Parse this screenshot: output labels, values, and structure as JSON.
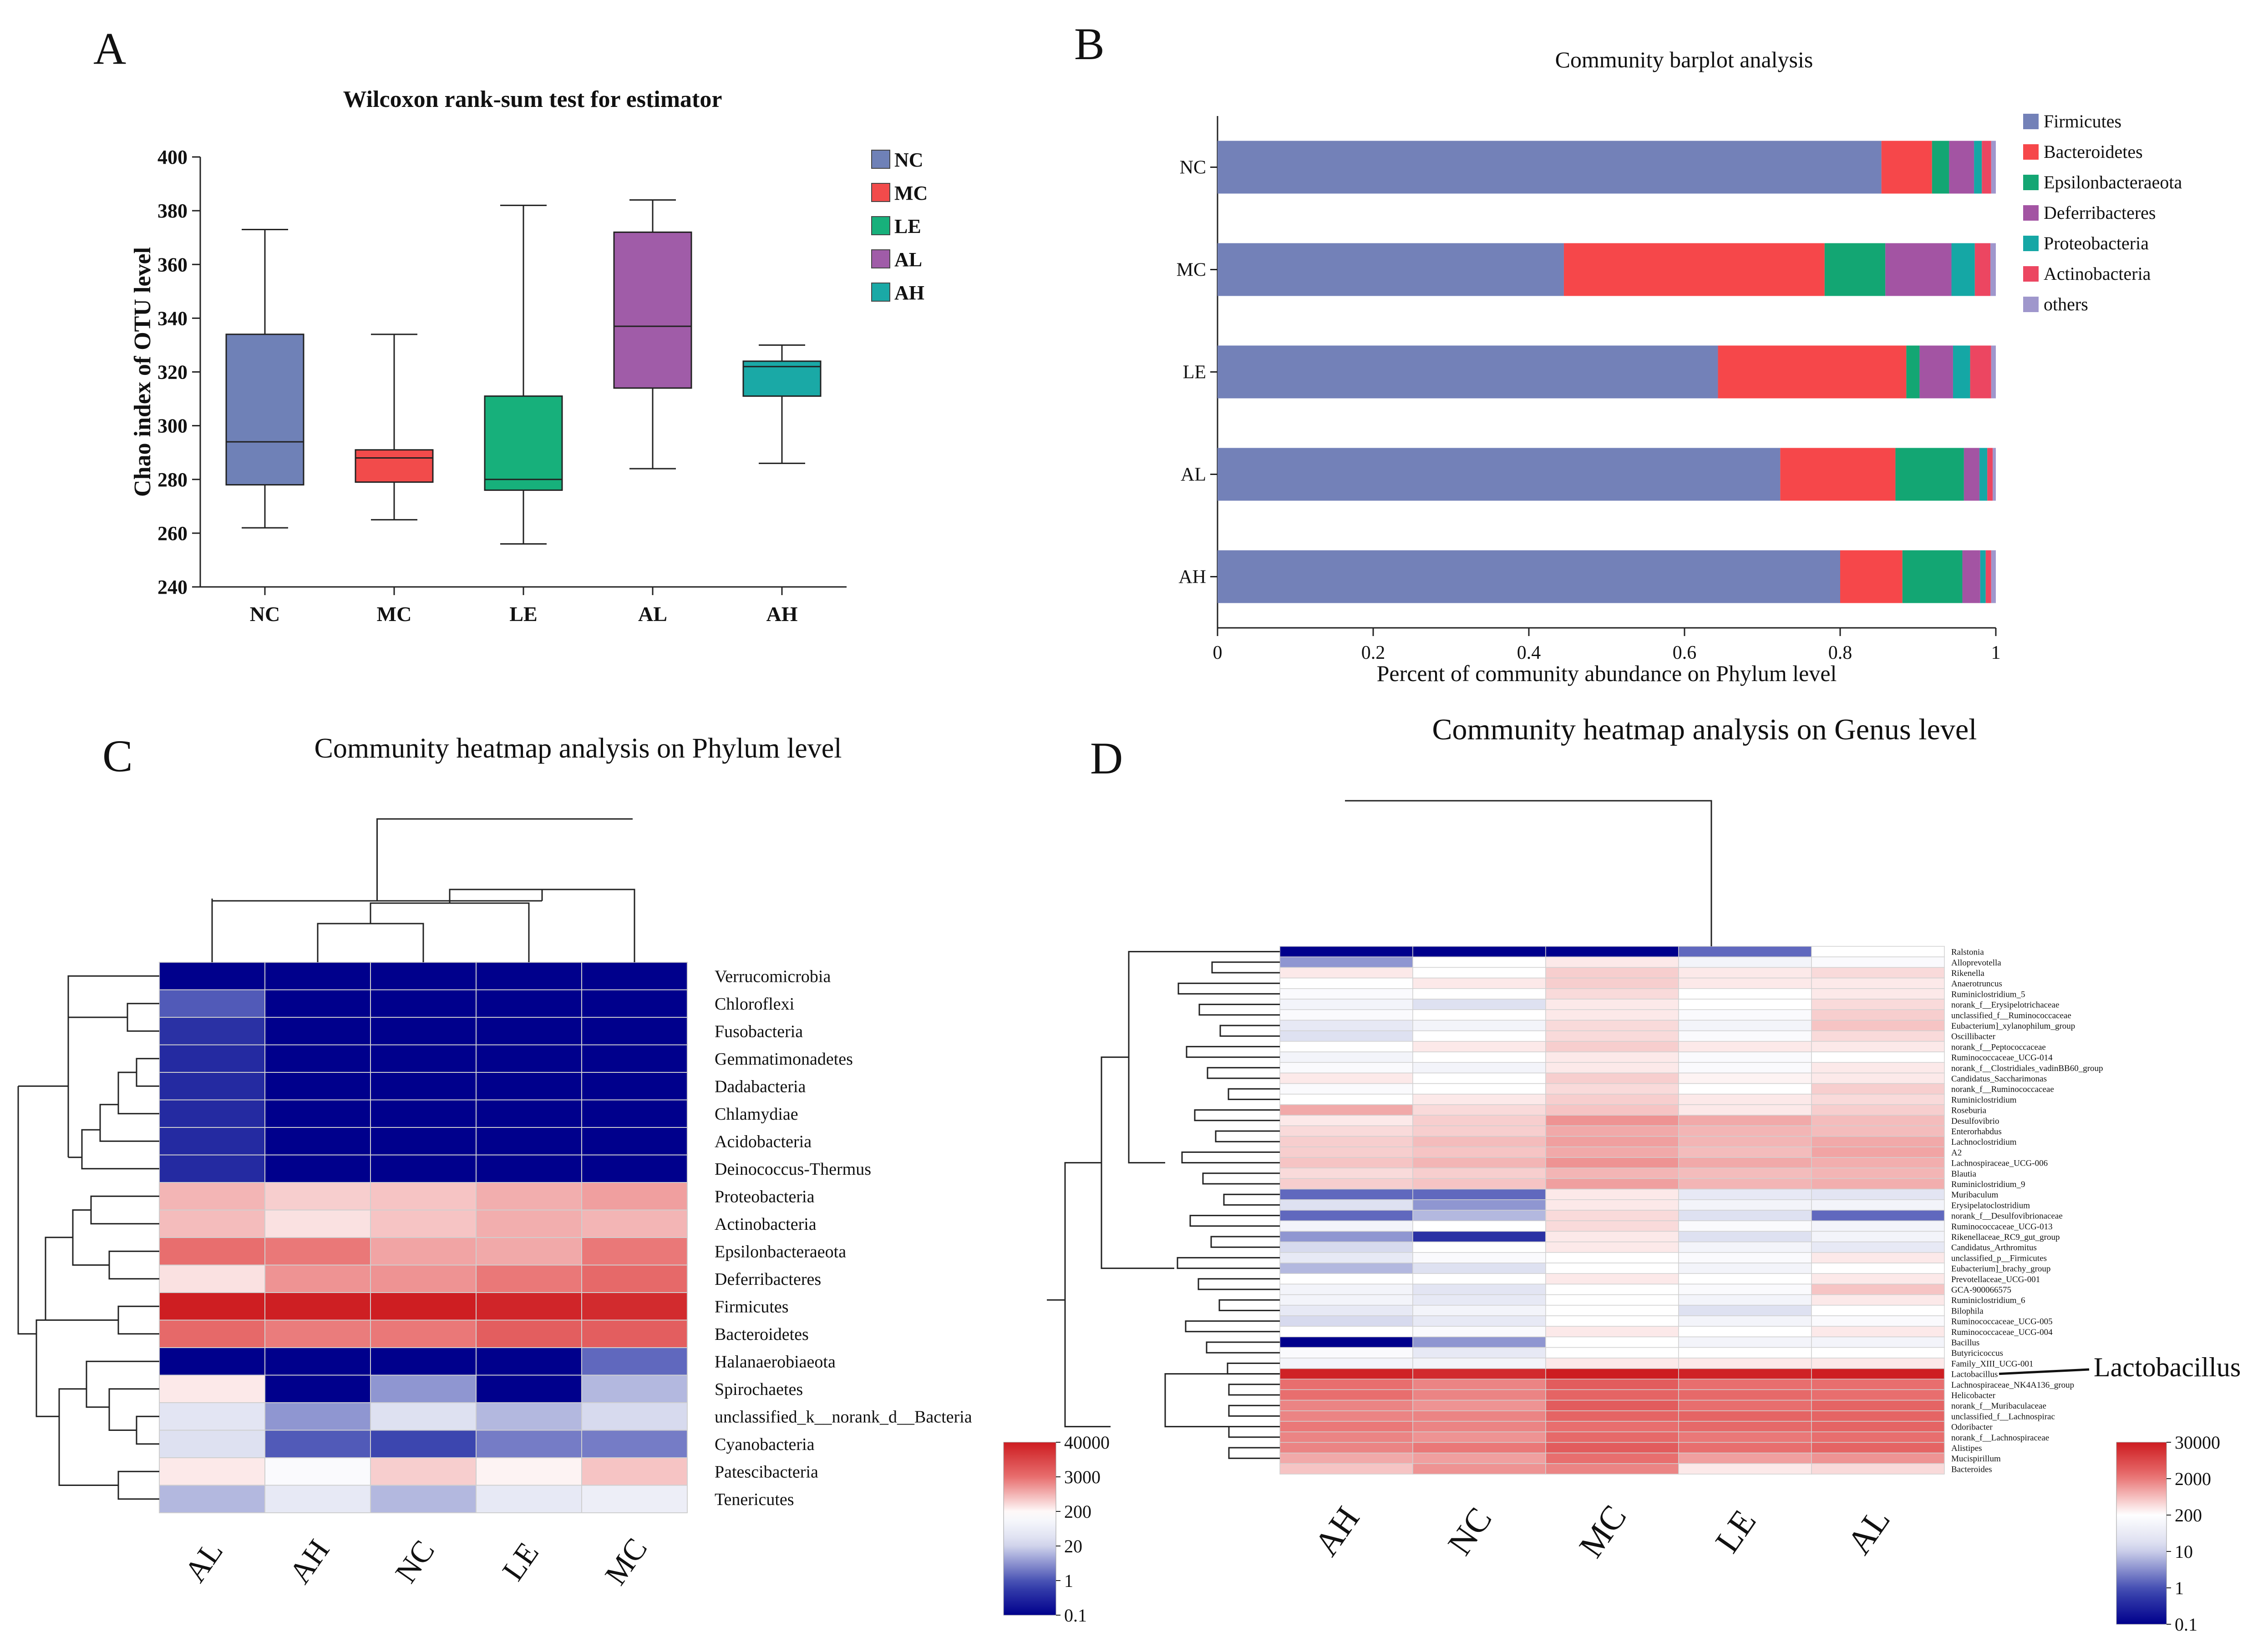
{
  "chart_data": [
    {
      "panel": "A",
      "type": "box",
      "title": "Wilcoxon rank-sum test for estimator",
      "ylabel": "Chao index of OTU level",
      "ylim": [
        240,
        400
      ],
      "yticks": [
        "240",
        "260",
        "280",
        "300",
        "320",
        "340",
        "360",
        "380",
        "400"
      ],
      "groups": [
        {
          "name": "NC",
          "color": "#6F81B7",
          "min": 262,
          "q1": 278,
          "median": 294,
          "q3": 334,
          "max": 373
        },
        {
          "name": "MC",
          "color": "#F24B4B",
          "min": 265,
          "q1": 279,
          "median": 288,
          "q3": 291,
          "max": 334
        },
        {
          "name": "LE",
          "color": "#17B07B",
          "min": 256,
          "q1": 276,
          "median": 280,
          "q3": 311,
          "max": 382
        },
        {
          "name": "AL",
          "color": "#A05CA8",
          "min": 284,
          "q1": 314,
          "median": 337,
          "q3": 372,
          "max": 384
        },
        {
          "name": "AH",
          "color": "#1AA9A6",
          "min": 286,
          "q1": 311,
          "median": 322,
          "q3": 324,
          "max": 330
        }
      ]
    },
    {
      "panel": "B",
      "type": "bar",
      "stacked": true,
      "orientation": "horizontal",
      "title": "Community barplot analysis",
      "xlabel": "Percent of community abundance on Phylum level",
      "xticks": [
        "0",
        "0.2",
        "0.4",
        "0.6",
        "0.8",
        "1"
      ],
      "xlim": [
        0,
        1
      ],
      "categories": [
        "NC",
        "MC",
        "LE",
        "AL",
        "AH"
      ],
      "series": [
        {
          "name": "Firmicutes",
          "color": "#7381B8",
          "values": [
            0.853,
            0.445,
            0.643,
            0.723,
            0.8
          ]
        },
        {
          "name": "Bacteroidetes",
          "color": "#F6474A",
          "values": [
            0.065,
            0.335,
            0.242,
            0.148,
            0.08
          ]
        },
        {
          "name": "Epsilonbacteraeota",
          "color": "#13A673",
          "values": [
            0.022,
            0.078,
            0.017,
            0.088,
            0.077
          ]
        },
        {
          "name": "Deferribacteres",
          "color": "#A354A3",
          "values": [
            0.032,
            0.085,
            0.043,
            0.02,
            0.023
          ]
        },
        {
          "name": "Proteobacteria",
          "color": "#15A7A5",
          "values": [
            0.01,
            0.03,
            0.022,
            0.01,
            0.007
          ]
        },
        {
          "name": "Actinobacteria",
          "color": "#EC4661",
          "values": [
            0.012,
            0.02,
            0.027,
            0.007,
            0.007
          ]
        },
        {
          "name": "others",
          "color": "#9F97CC",
          "values": [
            0.006,
            0.007,
            0.006,
            0.004,
            0.006
          ]
        }
      ]
    },
    {
      "panel": "C",
      "type": "heatmap",
      "title": "Community heatmap analysis on Phylum level",
      "columns": [
        "AL",
        "AH",
        "NC",
        "LE",
        "MC"
      ],
      "rows": [
        "Verrucomicrobia",
        "Chloroflexi",
        "Fusobacteria",
        "Gemmatimonadetes",
        "Dadabacteria",
        "Chlamydiae",
        "Acidobacteria",
        "Deinococcus-Thermus",
        "Proteobacteria",
        "Actinobacteria",
        "Epsilonbacteraeota",
        "Deferribacteres",
        "Firmicutes",
        "Bacteroidetes",
        "Halanaerobiaeota",
        "Spirochaetes",
        "unclassified_k__norank_d__Bacteria",
        "Cyanobacteria",
        "Patescibacteria",
        "Tenericutes"
      ],
      "values": [
        [
          0.1,
          0.1,
          0.1,
          0.1,
          0.1
        ],
        [
          1.5,
          0.1,
          0.1,
          0.1,
          0.1
        ],
        [
          0.5,
          0.1,
          0.1,
          0.1,
          0.1
        ],
        [
          0.4,
          0.1,
          0.1,
          0.1,
          0.1
        ],
        [
          0.4,
          0.1,
          0.1,
          0.1,
          0.1
        ],
        [
          0.4,
          0.1,
          0.1,
          0.1,
          0.1
        ],
        [
          0.4,
          0.1,
          0.1,
          0.1,
          0.1
        ],
        [
          0.4,
          0.1,
          0.1,
          0.1,
          0.1
        ],
        [
          800,
          500,
          600,
          900,
          1200
        ],
        [
          700,
          350,
          600,
          900,
          800
        ],
        [
          3000,
          2500,
          1100,
          1000,
          2500
        ],
        [
          350,
          1500,
          1500,
          2500,
          3500
        ],
        [
          38000,
          36000,
          38000,
          30000,
          25000
        ],
        [
          3500,
          2300,
          2500,
          5000,
          5000
        ],
        [
          0.1,
          0.1,
          0.1,
          0.1,
          2
        ],
        [
          300,
          0.1,
          5,
          0.1,
          10
        ],
        [
          40,
          5,
          30,
          10,
          20
        ],
        [
          30,
          1.5,
          1,
          3,
          3
        ],
        [
          300,
          150,
          500,
          250,
          600
        ],
        [
          10,
          50,
          10,
          50,
          70
        ]
      ],
      "colorbar": {
        "ticks": [
          "40000",
          "3000",
          "200",
          "20",
          "1",
          "0.1"
        ]
      }
    },
    {
      "panel": "D",
      "type": "heatmap",
      "title": "Community heatmap analysis on Genus level",
      "columns": [
        "AH",
        "NC",
        "MC",
        "LE",
        "AL"
      ],
      "rows": [
        "Ralstonia",
        "Alloprevotella",
        "Rikenella",
        "Anaerotruncus",
        "Ruminiclostridium_5",
        "norank_f__Erysipelotrichaceae",
        "unclassified_f__Ruminococcaceae",
        "Eubacterium]_xylanophilum_group",
        "Oscillibacter",
        "norank_f__Peptococcaceae",
        "Ruminococcaceae_UCG-014",
        "norank_f__Clostridiales_vadinBB60_group",
        "Candidatus_Saccharimonas",
        "norank_f__Ruminococcaceae",
        "Ruminiclostridium",
        "Roseburia",
        "Desulfovibrio",
        "Enterorhabdus",
        "Lachnoclostridium",
        "A2",
        "Lachnospiraceae_UCG-006",
        "Blautia",
        "Ruminiclostridium_9",
        "Muribaculum",
        "Erysipelatoclostridium",
        "norank_f__Desulfovibrionaceae",
        "Ruminococcaceae_UCG-013",
        "Rikenellaceae_RC9_gut_group",
        "Candidatus_Arthromitus",
        "unclassified_p__Firmicutes",
        "Eubacterium]_brachy_group",
        "Prevotellaceae_UCG-001",
        "GCA-900066575",
        "Ruminiclostridium_6",
        "Bilophila",
        "Ruminococcaceae_UCG-005",
        "Ruminococcaceae_UCG-004",
        "Bacillus",
        "Butyricicoccus",
        "Family_XIII_UCG-001",
        "Lactobacillus",
        "Lachnospiraceae_NK4A136_group",
        "Helicobacter",
        "norank_f__Muribaculaceae",
        "unclassified_f__Lachnospirac",
        "Odoribacter",
        "norank_f__Lachnospiraceae",
        "Alistipes",
        "Mucispirillum",
        "Bacteroides"
      ],
      "values": [
        [
          0.1,
          0.1,
          0.1,
          2,
          200
        ],
        [
          5,
          200,
          300,
          100,
          150
        ],
        [
          300,
          200,
          500,
          300,
          400
        ],
        [
          200,
          300,
          500,
          300,
          300
        ],
        [
          150,
          200,
          400,
          200,
          300
        ],
        [
          100,
          30,
          300,
          200,
          400
        ],
        [
          150,
          200,
          300,
          150,
          500
        ],
        [
          50,
          100,
          400,
          100,
          600
        ],
        [
          30,
          200,
          400,
          150,
          400
        ],
        [
          200,
          300,
          500,
          300,
          300
        ],
        [
          100,
          200,
          300,
          150,
          200
        ],
        [
          150,
          100,
          300,
          150,
          300
        ],
        [
          300,
          200,
          500,
          250,
          300
        ],
        [
          150,
          200,
          400,
          200,
          500
        ],
        [
          200,
          300,
          500,
          300,
          400
        ],
        [
          1000,
          400,
          600,
          300,
          500
        ],
        [
          300,
          500,
          1500,
          1000,
          700
        ],
        [
          400,
          500,
          1000,
          800,
          700
        ],
        [
          500,
          700,
          1200,
          800,
          1000
        ],
        [
          500,
          600,
          1000,
          700,
          1100
        ],
        [
          600,
          800,
          1500,
          1000,
          900
        ],
        [
          400,
          500,
          800,
          700,
          800
        ],
        [
          500,
          600,
          1200,
          800,
          900
        ],
        [
          2,
          2,
          300,
          50,
          40
        ],
        [
          30,
          5,
          300,
          100,
          100
        ],
        [
          2,
          10,
          400,
          30,
          2
        ],
        [
          100,
          200,
          400,
          150,
          100
        ],
        [
          5,
          0.5,
          300,
          30,
          100
        ],
        [
          20,
          200,
          300,
          100,
          50
        ],
        [
          50,
          150,
          200,
          150,
          300
        ],
        [
          10,
          30,
          200,
          100,
          200
        ],
        [
          200,
          200,
          300,
          200,
          300
        ],
        [
          100,
          40,
          200,
          150,
          600
        ],
        [
          100,
          50,
          200,
          100,
          300
        ],
        [
          50,
          100,
          200,
          30,
          200
        ],
        [
          20,
          50,
          200,
          100,
          150
        ],
        [
          200,
          150,
          300,
          200,
          300
        ],
        [
          0.1,
          5,
          200,
          100,
          100
        ],
        [
          150,
          50,
          200,
          200,
          200
        ],
        [
          100,
          100,
          300,
          300,
          300
        ],
        [
          25000,
          20000,
          30000,
          25000,
          28000
        ],
        [
          3000,
          2000,
          5000,
          3000,
          3000
        ],
        [
          3000,
          2000,
          4000,
          3500,
          3000
        ],
        [
          2000,
          1500,
          5000,
          3000,
          4000
        ],
        [
          2000,
          2000,
          4000,
          4000,
          4000
        ],
        [
          2500,
          2000,
          3000,
          3500,
          4000
        ],
        [
          2000,
          1500,
          3500,
          2500,
          3000
        ],
        [
          2000,
          2500,
          5000,
          3000,
          4000
        ],
        [
          1000,
          1200,
          3000,
          1200,
          1500
        ],
        [
          600,
          1500,
          2000,
          300,
          400
        ]
      ],
      "annotation": "Lactobacillus",
      "colorbar": {
        "ticks": [
          "30000",
          "2000",
          "200",
          "10",
          "1",
          "0.1"
        ]
      }
    }
  ],
  "panels": {
    "a": "A",
    "b": "B",
    "c": "C",
    "d": "D"
  }
}
